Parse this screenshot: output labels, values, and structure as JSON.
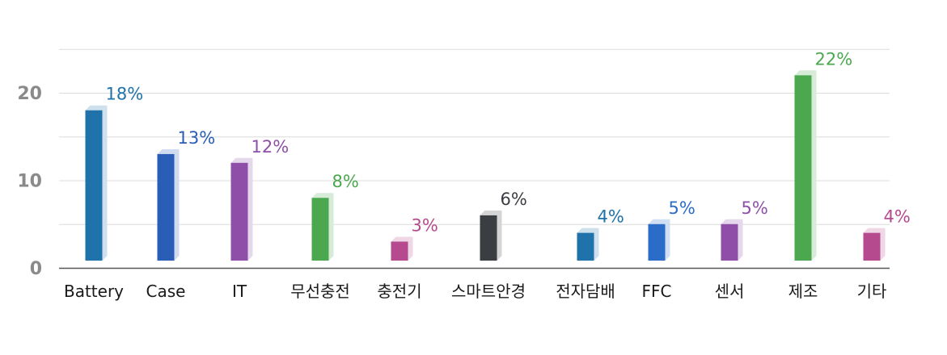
{
  "chart_data": {
    "type": "bar",
    "categories": [
      "Battery",
      "Case",
      "IT",
      "무선충전",
      "충전기",
      "스마트안경",
      "전자담배",
      "FFC",
      "센서",
      "제조",
      "기타"
    ],
    "values": [
      18,
      13,
      12,
      8,
      3,
      6,
      4,
      5,
      5,
      22,
      4
    ],
    "value_labels": [
      "18%",
      "13%",
      "12%",
      "8%",
      "3%",
      "6%",
      "4%",
      "5%",
      "5%",
      "22%",
      "4%"
    ],
    "colors": [
      "#1f72aa",
      "#2a5db6",
      "#8f4fa8",
      "#4ba84f",
      "#b54b8e",
      "#3a3d41",
      "#1f72aa",
      "#2a6cc8",
      "#8f4fa8",
      "#4ba84f",
      "#b54b8e"
    ],
    "label_colors": [
      "#1f72aa",
      "#2a5db6",
      "#8f4fa8",
      "#4ba84f",
      "#b54b8e",
      "#3a3d41",
      "#1f72aa",
      "#2a6cc8",
      "#8f4fa8",
      "#4ba84f",
      "#b54b8e"
    ],
    "yticks": [
      0,
      10,
      20
    ],
    "ylim": [
      0,
      25
    ],
    "grid": true,
    "title": "",
    "xlabel": "",
    "ylabel": ""
  }
}
